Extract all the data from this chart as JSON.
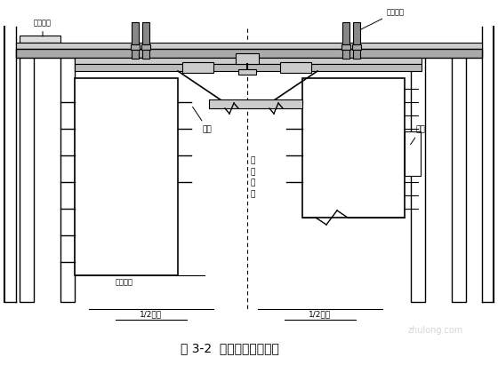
{
  "title": "图 3-2  圆端形翻模总装图",
  "bg_color": "#ffffff",
  "lc": "#000000",
  "fig_width": 5.6,
  "fig_height": 4.11,
  "dpi": 100,
  "label_zuoyepingtai": "作业平台",
  "label_tishengxitong": "提升系统",
  "label_diаojia": "吊架",
  "label_muban": "模板",
  "label_zhongxin": "截中心线",
  "label_bentaiding": "盖台顶面",
  "label_half_bottom": "1/2墩底",
  "label_half_top": "1/2墩顶",
  "watermark": "zhulong.com"
}
